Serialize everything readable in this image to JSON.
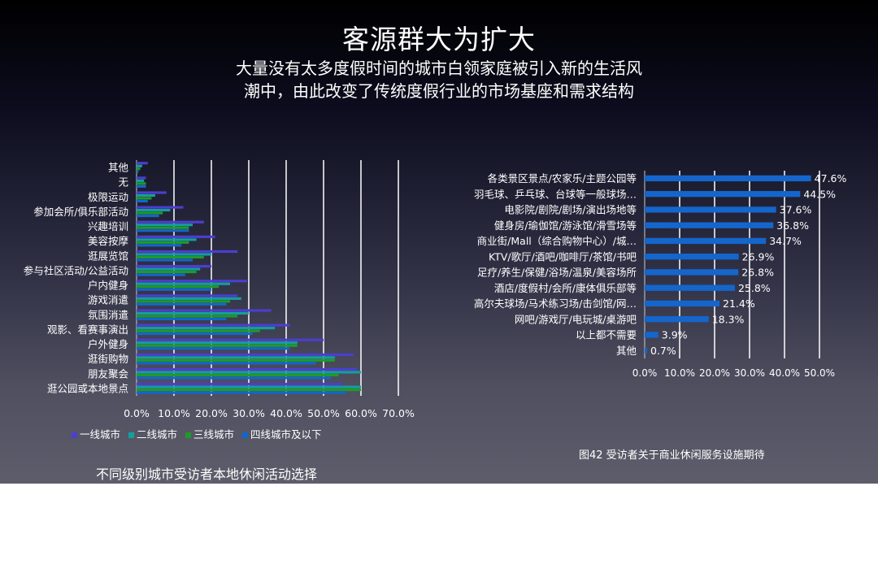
{
  "slide": {
    "title": "客源群大为扩大",
    "subtitle_line1": "大量没有太多度假时间的城市白领家庭被引入新的生活风",
    "subtitle_line2": "潮中，由此改变了传统度假行业的市场基座和需求结构"
  },
  "left_caption": "不同级别城市受访者本地休闲活动选择",
  "right_caption": "图42 受访者关于商业休闲服务设施期待",
  "colors": {
    "tier1": "#4b3fcf",
    "tier2": "#159e9e",
    "tier3": "#1f9a2a",
    "tier4": "#1466cc",
    "right_bar": "#1466cc",
    "gridline": "#ffffff"
  },
  "chart_data": [
    {
      "type": "bar",
      "orientation": "horizontal",
      "categories": [
        "其他",
        "无",
        "极限运动",
        "参加会所/俱乐部活动",
        "兴趣培训",
        "美容按摩",
        "逛展览馆",
        "参与社区活动/公益活动",
        "户内健身",
        "游戏消遣",
        "氛围消遣",
        "观影、看赛事演出",
        "户外健身",
        "逛街购物",
        "朋友聚会",
        "逛公园或本地景点"
      ],
      "series": [
        {
          "name": "一线城市",
          "values": [
            3,
            2.5,
            8,
            12.5,
            18,
            21,
            27,
            20,
            29.5,
            27,
            36,
            41,
            50,
            58,
            59,
            55
          ]
        },
        {
          "name": "二线城市",
          "values": [
            1.5,
            2,
            5,
            9,
            15,
            16,
            20,
            17,
            25,
            28,
            30,
            37,
            43,
            53,
            60,
            60
          ]
        },
        {
          "name": "三线城市",
          "values": [
            1,
            2.5,
            4,
            7,
            14,
            14,
            18,
            16,
            22,
            25,
            27,
            33,
            43,
            53,
            54,
            60
          ]
        },
        {
          "name": "四线城市及以下",
          "values": [
            0.5,
            2.5,
            3,
            6,
            14,
            12,
            15,
            13,
            20,
            24,
            24,
            31,
            41,
            48,
            52,
            56
          ]
        }
      ],
      "xlim": [
        0,
        70
      ],
      "xticks": [
        "0.0%",
        "10.0%",
        "20.0%",
        "30.0%",
        "40.0%",
        "50.0%",
        "60.0%",
        "70.0%"
      ],
      "legend": [
        "一线城市",
        "二线城市",
        "三线城市",
        "四线城市及以下"
      ],
      "legend_position": "bottom",
      "grid": true
    },
    {
      "type": "bar",
      "orientation": "horizontal",
      "categories": [
        "各类景区景点/农家乐/主题公园等",
        "羽毛球、乒乓球、台球等一般球场…",
        "电影院/剧院/剧场/演出场地等",
        "健身房/瑜伽馆/游泳馆/滑雪场等",
        "商业街/Mall（综合购物中心）/城…",
        "KTV/歌厅/酒吧/咖啡厅/茶馆/书吧",
        "足疗/养生/保健/浴场/温泉/美容场所",
        "酒店/度假村/会所/康体俱乐部等",
        "高尔夫球场/马术练习场/击剑馆/网…",
        "网吧/游戏厅/电玩城/桌游吧",
        "以上都不需要",
        "其他"
      ],
      "values": [
        47.6,
        44.5,
        37.6,
        36.8,
        34.7,
        26.9,
        26.8,
        25.8,
        21.4,
        18.3,
        3.9,
        0.7
      ],
      "data_labels": [
        "47.6%",
        "44.5%",
        "37.6%",
        "36.8%",
        "34.7%",
        "26.9%",
        "26.8%",
        "25.8%",
        "21.4%",
        "18.3%",
        "3.9%",
        "0.7%"
      ],
      "xlim": [
        0,
        50
      ],
      "xticks": [
        "0.0%",
        "10.0%",
        "20.0%",
        "30.0%",
        "40.0%",
        "50.0%"
      ],
      "grid": true
    }
  ]
}
